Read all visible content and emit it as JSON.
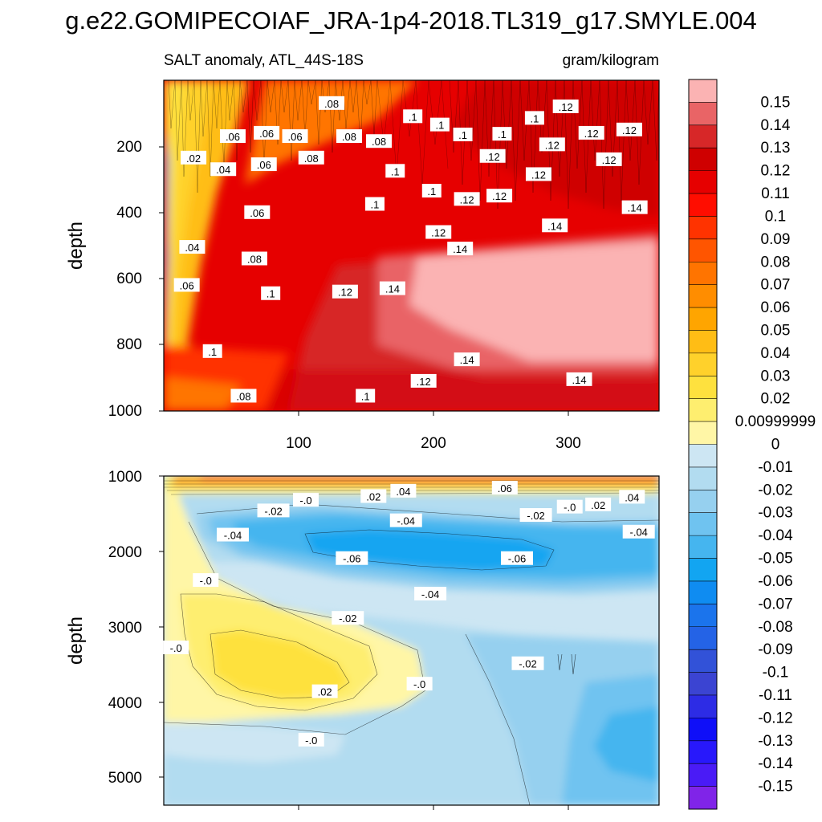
{
  "figure": {
    "title": "g.e22.GOMIPECOIAF_JRA-1p4-2018.TL319_g17.SMYLE.004",
    "left_subtitle": "SALT anomaly, ATL_44S-18S",
    "right_subtitle": "gram/kilogram"
  },
  "chart_data": [
    {
      "type": "heatmap",
      "panel": "upper",
      "title": "SALT anomaly, ATL_44S-18S",
      "units": "gram/kilogram",
      "xlabel": "",
      "ylabel": "depth",
      "xlim": [
        1,
        367
      ],
      "ylim": [
        1000,
        0
      ],
      "x_ticks": [
        100,
        200,
        300
      ],
      "y_ticks": [
        200,
        400,
        600,
        800,
        1000
      ],
      "contour_labels": [
        {
          "text": ".08",
          "x": 125,
          "y": 70
        },
        {
          "text": ".06",
          "x": 52,
          "y": 170
        },
        {
          "text": ".06",
          "x": 77,
          "y": 160
        },
        {
          "text": ".06",
          "x": 98,
          "y": 170
        },
        {
          "text": ".08",
          "x": 138,
          "y": 170
        },
        {
          "text": ".08",
          "x": 160,
          "y": 185
        },
        {
          "text": ".08",
          "x": 110,
          "y": 235
        },
        {
          "text": ".02",
          "x": 23,
          "y": 235
        },
        {
          "text": ".04",
          "x": 45,
          "y": 270
        },
        {
          "text": ".06",
          "x": 75,
          "y": 255
        },
        {
          "text": ".06",
          "x": 70,
          "y": 400
        },
        {
          "text": ".04",
          "x": 22,
          "y": 505
        },
        {
          "text": ".08",
          "x": 68,
          "y": 540
        },
        {
          "text": ".06",
          "x": 18,
          "y": 620
        },
        {
          "text": ".1",
          "x": 80,
          "y": 645
        },
        {
          "text": ".12",
          "x": 135,
          "y": 640
        },
        {
          "text": ".14",
          "x": 170,
          "y": 630
        },
        {
          "text": ".1",
          "x": 37,
          "y": 820
        },
        {
          "text": ".08",
          "x": 60,
          "y": 955
        },
        {
          "text": ".1",
          "x": 150,
          "y": 955
        },
        {
          "text": ".12",
          "x": 193,
          "y": 910
        },
        {
          "text": ".14",
          "x": 225,
          "y": 845
        },
        {
          "text": ".14",
          "x": 308,
          "y": 905
        },
        {
          "text": ".1",
          "x": 185,
          "y": 110
        },
        {
          "text": ".1",
          "x": 205,
          "y": 135
        },
        {
          "text": ".1",
          "x": 222,
          "y": 165
        },
        {
          "text": ".1",
          "x": 251,
          "y": 163
        },
        {
          "text": ".1",
          "x": 275,
          "y": 115
        },
        {
          "text": ".12",
          "x": 298,
          "y": 80
        },
        {
          "text": ".12",
          "x": 288,
          "y": 195
        },
        {
          "text": ".12",
          "x": 317,
          "y": 160
        },
        {
          "text": ".12",
          "x": 345,
          "y": 150
        },
        {
          "text": ".12",
          "x": 330,
          "y": 240
        },
        {
          "text": ".12",
          "x": 244,
          "y": 230
        },
        {
          "text": ".12",
          "x": 278,
          "y": 285
        },
        {
          "text": ".12",
          "x": 225,
          "y": 360
        },
        {
          "text": ".12",
          "x": 249,
          "y": 350
        },
        {
          "text": ".12",
          "x": 204,
          "y": 460
        },
        {
          "text": ".1",
          "x": 172,
          "y": 275
        },
        {
          "text": ".1",
          "x": 157,
          "y": 375
        },
        {
          "text": ".1",
          "x": 199,
          "y": 335
        },
        {
          "text": ".14",
          "x": 220,
          "y": 510
        },
        {
          "text": ".14",
          "x": 290,
          "y": 440
        },
        {
          "text": ".14",
          "x": 349,
          "y": 385
        }
      ]
    },
    {
      "type": "heatmap",
      "panel": "lower",
      "xlabel": "",
      "ylabel": "depth",
      "xlim": [
        1,
        367
      ],
      "ylim": [
        5350,
        1000
      ],
      "x_ticks": [
        100,
        200,
        300
      ],
      "y_ticks": [
        1000,
        2000,
        3000,
        4000,
        5000
      ],
      "contour_labels": [
        {
          "text": ".04",
          "x": 178,
          "y": 1200
        },
        {
          "text": ".02",
          "x": 156,
          "y": 1270
        },
        {
          "text": "-.0",
          "x": 106,
          "y": 1320
        },
        {
          "text": "-.02",
          "x": 82,
          "y": 1460
        },
        {
          "text": "-.04",
          "x": 52,
          "y": 1780
        },
        {
          "text": "-.04",
          "x": 180,
          "y": 1590
        },
        {
          "text": ".06",
          "x": 253,
          "y": 1160
        },
        {
          "text": "-.02",
          "x": 276,
          "y": 1520
        },
        {
          "text": "-.0",
          "x": 301,
          "y": 1410
        },
        {
          "text": ".02",
          "x": 322,
          "y": 1380
        },
        {
          "text": ".04",
          "x": 347,
          "y": 1280
        },
        {
          "text": "-.04",
          "x": 352,
          "y": 1740
        },
        {
          "text": "-.06",
          "x": 140,
          "y": 2090
        },
        {
          "text": "-.06",
          "x": 262,
          "y": 2090
        },
        {
          "text": "-.0",
          "x": 32,
          "y": 2380
        },
        {
          "text": "-.04",
          "x": 198,
          "y": 2560
        },
        {
          "text": "-.02",
          "x": 137,
          "y": 2880
        },
        {
          "text": "-.0",
          "x": 10,
          "y": 3270
        },
        {
          "text": ".02",
          "x": 120,
          "y": 3850
        },
        {
          "text": "-.0",
          "x": 190,
          "y": 3750
        },
        {
          "text": "-.02",
          "x": 270,
          "y": 3480
        },
        {
          "text": "-.0",
          "x": 110,
          "y": 4490
        }
      ]
    }
  ],
  "colorbar": {
    "labels": [
      "0.15",
      "0.14",
      "0.13",
      "0.12",
      "0.11",
      "0.1",
      "0.09",
      "0.08",
      "0.07",
      "0.06",
      "0.05",
      "0.04",
      "0.03",
      "0.02",
      "0.00999999",
      "0",
      "-0.01",
      "-0.02",
      "-0.03",
      "-0.04",
      "-0.05",
      "-0.06",
      "-0.07",
      "-0.08",
      "-0.09",
      "-0.1",
      "-0.11",
      "-0.12",
      "-0.13",
      "-0.14",
      "-0.15"
    ],
    "colors": [
      "#fbb3b3",
      "#e96466",
      "#d72728",
      "#cf0000",
      "#e60000",
      "#ff0d00",
      "#ff3300",
      "#ff5500",
      "#ff7400",
      "#ff8d00",
      "#ffa500",
      "#ffbd15",
      "#ffd12b",
      "#fee13e",
      "#feee6f",
      "#fff6a6",
      "#cde6f3",
      "#b2dcf0",
      "#96d0ef",
      "#6fc3f0",
      "#45b5ef",
      "#12a5f1",
      "#0f8cf1",
      "#1b74ec",
      "#2463e6",
      "#3252d8",
      "#3b44d2",
      "#2d2ce5",
      "#0f0ff8",
      "#2818fb",
      "#4a1bf6",
      "#8024e8"
    ]
  },
  "colors": {
    "zero_positive": "#fff6a6",
    "zero_negative": "#cde6f3",
    "max_positive": "#fbb3b3",
    "max_negative": "#8024e8"
  }
}
